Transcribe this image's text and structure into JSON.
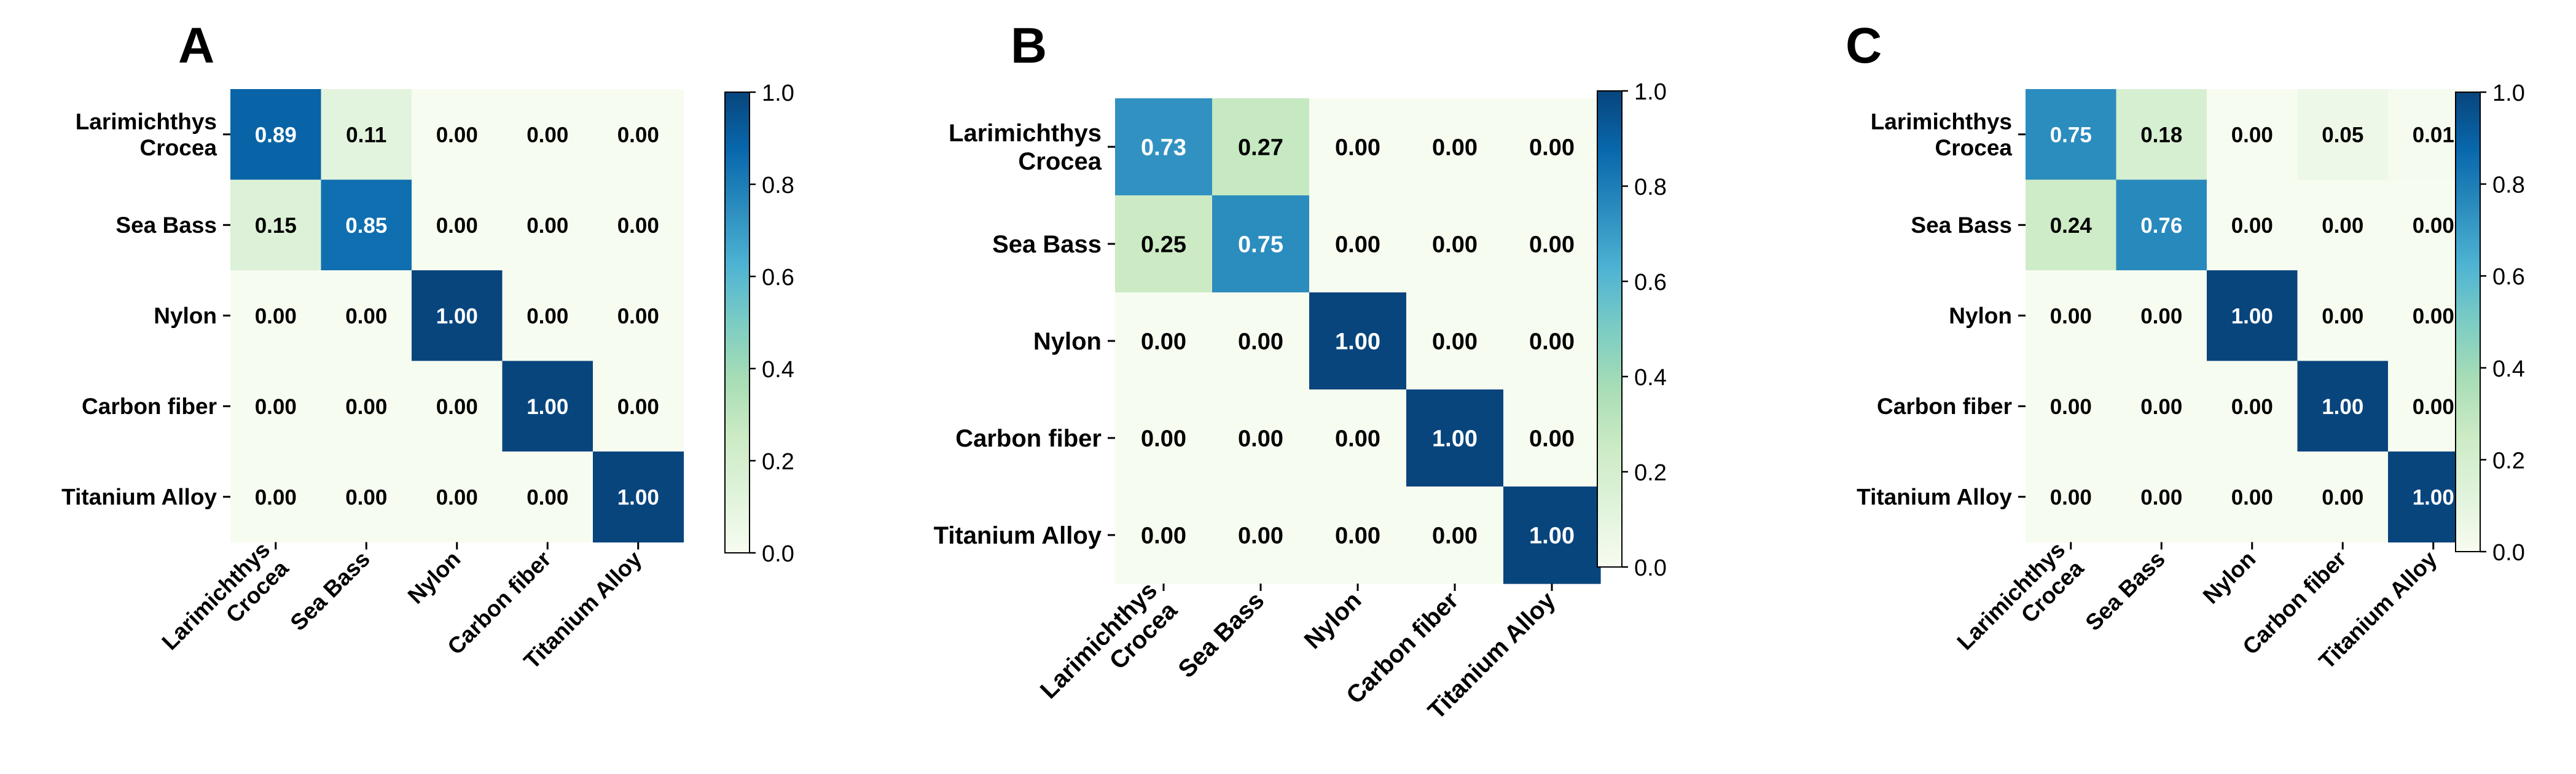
{
  "chart_data": [
    {
      "panel_label": "A",
      "type": "heatmap",
      "title": "",
      "xlabel": "",
      "ylabel": "",
      "row_labels": [
        [
          "Larimichthys",
          "Crocea"
        ],
        [
          "Sea Bass"
        ],
        [
          "Nylon"
        ],
        [
          "Carbon fiber"
        ],
        [
          "Titanium Alloy"
        ]
      ],
      "col_labels": [
        [
          "Larimichthys",
          "Crocea"
        ],
        [
          "Sea Bass"
        ],
        [
          "Nylon"
        ],
        [
          "Carbon fiber"
        ],
        [
          "Titanium Alloy"
        ]
      ],
      "matrix": [
        [
          0.89,
          0.11,
          0.0,
          0.0,
          0.0
        ],
        [
          0.15,
          0.85,
          0.0,
          0.0,
          0.0
        ],
        [
          0.0,
          0.0,
          1.0,
          0.0,
          0.0
        ],
        [
          0.0,
          0.0,
          0.0,
          1.0,
          0.0
        ],
        [
          0.0,
          0.0,
          0.0,
          0.0,
          1.0
        ]
      ],
      "cell_labels": [
        [
          "0.89",
          "0.11",
          "0.00",
          "0.00",
          "0.00"
        ],
        [
          "0.15",
          "0.85",
          "0.00",
          "0.00",
          "0.00"
        ],
        [
          "0.00",
          "0.00",
          "1.00",
          "0.00",
          "0.00"
        ],
        [
          "0.00",
          "0.00",
          "0.00",
          "1.00",
          "0.00"
        ],
        [
          "0.00",
          "0.00",
          "0.00",
          "0.00",
          "1.00"
        ]
      ],
      "colorbar": {
        "range": [
          0.0,
          1.0
        ],
        "ticks": [
          0.0,
          0.2,
          0.4,
          0.6,
          0.8,
          1.0
        ],
        "tick_labels": [
          "0.0",
          "0.2",
          "0.4",
          "0.6",
          "0.8",
          "1.0"
        ]
      }
    },
    {
      "panel_label": "B",
      "type": "heatmap",
      "title": "",
      "xlabel": "",
      "ylabel": "",
      "row_labels": [
        [
          "Larimichthys",
          "Crocea"
        ],
        [
          "Sea Bass"
        ],
        [
          "Nylon"
        ],
        [
          "Carbon fiber"
        ],
        [
          "Titanium Alloy"
        ]
      ],
      "col_labels": [
        [
          "Larimichthys",
          "Crocea"
        ],
        [
          "Sea Bass"
        ],
        [
          "Nylon"
        ],
        [
          "Carbon fiber"
        ],
        [
          "Titanium Alloy"
        ]
      ],
      "matrix": [
        [
          0.73,
          0.27,
          0.0,
          0.0,
          0.0
        ],
        [
          0.25,
          0.75,
          0.0,
          0.0,
          0.0
        ],
        [
          0.0,
          0.0,
          1.0,
          0.0,
          0.0
        ],
        [
          0.0,
          0.0,
          0.0,
          1.0,
          0.0
        ],
        [
          0.0,
          0.0,
          0.0,
          0.0,
          1.0
        ]
      ],
      "cell_labels": [
        [
          "0.73",
          "0.27",
          "0.00",
          "0.00",
          "0.00"
        ],
        [
          "0.25",
          "0.75",
          "0.00",
          "0.00",
          "0.00"
        ],
        [
          "0.00",
          "0.00",
          "1.00",
          "0.00",
          "0.00"
        ],
        [
          "0.00",
          "0.00",
          "0.00",
          "1.00",
          "0.00"
        ],
        [
          "0.00",
          "0.00",
          "0.00",
          "0.00",
          "1.00"
        ]
      ],
      "colorbar": {
        "range": [
          0.0,
          1.0
        ],
        "ticks": [
          0.0,
          0.2,
          0.4,
          0.6,
          0.8,
          1.0
        ],
        "tick_labels": [
          "0.0",
          "0.2",
          "0.4",
          "0.6",
          "0.8",
          "1.0"
        ]
      }
    },
    {
      "panel_label": "C",
      "type": "heatmap",
      "title": "",
      "xlabel": "",
      "ylabel": "",
      "row_labels": [
        [
          "Larimichthys",
          "Crocea"
        ],
        [
          "Sea Bass"
        ],
        [
          "Nylon"
        ],
        [
          "Carbon fiber"
        ],
        [
          "Titanium Alloy"
        ]
      ],
      "col_labels": [
        [
          "Larimichthys",
          "Crocea"
        ],
        [
          "Sea Bass"
        ],
        [
          "Nylon"
        ],
        [
          "Carbon fiber"
        ],
        [
          "Titanium Alloy"
        ]
      ],
      "matrix": [
        [
          0.75,
          0.18,
          0.0,
          0.05,
          0.01
        ],
        [
          0.24,
          0.76,
          0.0,
          0.0,
          0.0
        ],
        [
          0.0,
          0.0,
          1.0,
          0.0,
          0.0
        ],
        [
          0.0,
          0.0,
          0.0,
          1.0,
          0.0
        ],
        [
          0.0,
          0.0,
          0.0,
          0.0,
          1.0
        ]
      ],
      "cell_labels": [
        [
          "0.75",
          "0.18",
          "0.00",
          "0.05",
          "0.01"
        ],
        [
          "0.24",
          "0.76",
          "0.00",
          "0.00",
          "0.00"
        ],
        [
          "0.00",
          "0.00",
          "1.00",
          "0.00",
          "0.00"
        ],
        [
          "0.00",
          "0.00",
          "0.00",
          "1.00",
          "0.00"
        ],
        [
          "0.00",
          "0.00",
          "0.00",
          "0.00",
          "1.00"
        ]
      ],
      "colorbar": {
        "range": [
          0.0,
          1.0
        ],
        "ticks": [
          0.0,
          0.2,
          0.4,
          0.6,
          0.8,
          1.0
        ],
        "tick_labels": [
          "0.0",
          "0.2",
          "0.4",
          "0.6",
          "0.8",
          "1.0"
        ]
      }
    }
  ],
  "colormap": {
    "name": "GnBu",
    "stops": [
      "#f7fcf0",
      "#e0f3db",
      "#ccebc5",
      "#a8ddb5",
      "#7bccc4",
      "#4eb3d3",
      "#2b8cbe",
      "#0868ac",
      "#08457d"
    ]
  }
}
